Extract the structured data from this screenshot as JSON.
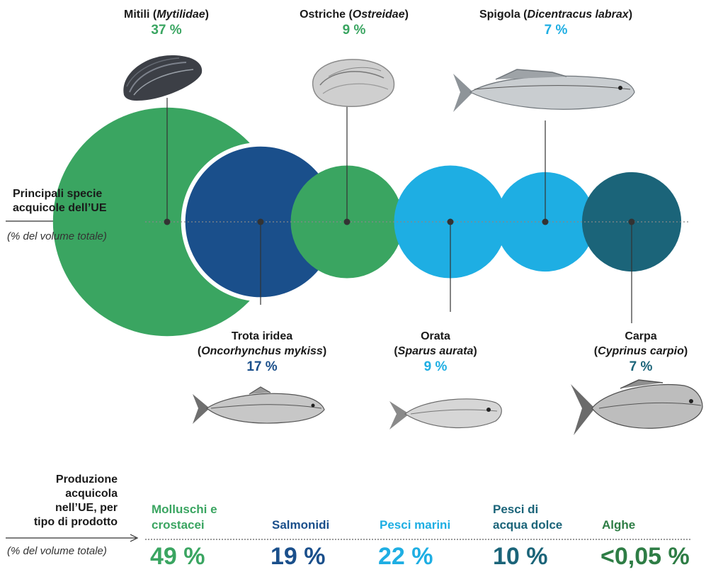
{
  "colors": {
    "molluschi": "#3aa561",
    "salmonidi": "#1a4f8b",
    "marini": "#1eaee3",
    "dolce": "#1b6479",
    "alghe": "#2e7d45"
  },
  "left_axis": {
    "title_line1": "Principali specie",
    "title_line2": "acquicole dell’UE",
    "note": "(% del volume totale)"
  },
  "chart_data": {
    "type": "bubble",
    "title": "Principali specie acquicole dell’UE",
    "unit": "% del volume totale",
    "species": [
      {
        "name": "Mitili",
        "latin": "Mytilidae",
        "value": 37,
        "value_label": "37 %",
        "group": "molluschi",
        "icon": "mussel-icon"
      },
      {
        "name": "Trota iridea",
        "latin": "Oncorhynchus mykiss",
        "value": 17,
        "value_label": "17 %",
        "group": "salmonidi",
        "icon": "trout-icon"
      },
      {
        "name": "Ostriche",
        "latin": "Ostreidae",
        "value": 9,
        "value_label": "9 %",
        "group": "molluschi",
        "icon": "oyster-icon"
      },
      {
        "name": "Orata",
        "latin": "Sparus aurata",
        "value": 9,
        "value_label": "9 %",
        "group": "marini",
        "icon": "seabream-icon"
      },
      {
        "name": "Spigola",
        "latin": "Dicentracus labrax",
        "value": 7,
        "value_label": "7 %",
        "group": "marini",
        "icon": "seabass-icon"
      },
      {
        "name": "Carpa",
        "latin": "Cyprinus carpio",
        "value": 7,
        "value_label": "7 %",
        "group": "dolce",
        "icon": "carp-icon"
      }
    ]
  },
  "production": {
    "title_lines": [
      "Produzione",
      "acquicola",
      "nell’UE, per",
      "tipo di prodotto"
    ],
    "note": "(% del volume totale)",
    "categories": [
      {
        "label_lines": [
          "Molluschi e",
          "crostacei"
        ],
        "value": "49 %",
        "color_key": "molluschi"
      },
      {
        "label_lines": [
          "Salmonidi"
        ],
        "value": "19 %",
        "color_key": "salmonidi"
      },
      {
        "label_lines": [
          "Pesci marini"
        ],
        "value": "22 %",
        "color_key": "marini"
      },
      {
        "label_lines": [
          "Pesci di",
          "acqua dolce"
        ],
        "value": "10 %",
        "color_key": "dolce"
      },
      {
        "label_lines": [
          "Alghe"
        ],
        "value": "<0,05 %",
        "color_key": "alghe"
      }
    ]
  }
}
